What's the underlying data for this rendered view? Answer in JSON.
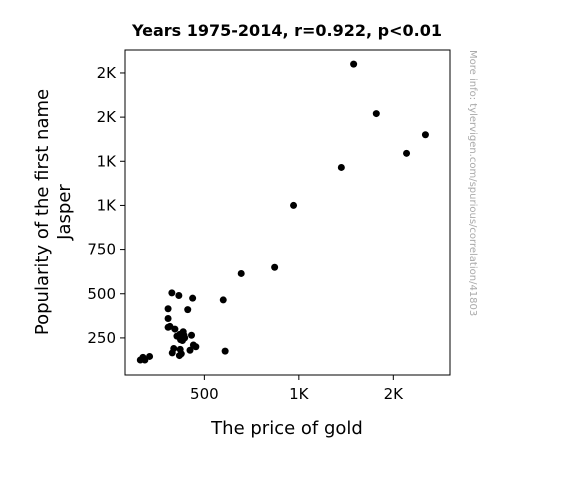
{
  "chart_data": {
    "type": "scatter",
    "title": "Years 1975-2014, r=0.922, p<0.01",
    "xlabel": "The price of gold",
    "ylabel_lines": [
      "Popularity of the first name",
      "Jasper"
    ],
    "watermark": "More info: tylervigen.com/spurious/correlation/41803",
    "xlim": [
      80,
      1800
    ],
    "ylim": [
      40,
      1880
    ],
    "x_ticks": [
      {
        "value": 500,
        "label": "500"
      },
      {
        "value": 1000,
        "label": "1K"
      },
      {
        "value": 1500,
        "label": "2K"
      }
    ],
    "y_ticks": [
      {
        "value": 250,
        "label": "250"
      },
      {
        "value": 500,
        "label": "500"
      },
      {
        "value": 750,
        "label": "750"
      },
      {
        "value": 1000,
        "label": "1K"
      },
      {
        "value": 1250,
        "label": "1K"
      },
      {
        "value": 1500,
        "label": "2K"
      },
      {
        "value": 1750,
        "label": "2K"
      }
    ],
    "marker_color": "#000000",
    "grid": false,
    "points": [
      {
        "x": 161,
        "y": 125
      },
      {
        "x": 175,
        "y": 140
      },
      {
        "x": 185,
        "y": 125
      },
      {
        "x": 210,
        "y": 145
      },
      {
        "x": 308,
        "y": 415
      },
      {
        "x": 308,
        "y": 360
      },
      {
        "x": 308,
        "y": 310
      },
      {
        "x": 318,
        "y": 315
      },
      {
        "x": 328,
        "y": 505
      },
      {
        "x": 330,
        "y": 165
      },
      {
        "x": 338,
        "y": 190
      },
      {
        "x": 344,
        "y": 300
      },
      {
        "x": 355,
        "y": 260
      },
      {
        "x": 365,
        "y": 490
      },
      {
        "x": 368,
        "y": 150
      },
      {
        "x": 370,
        "y": 270
      },
      {
        "x": 372,
        "y": 185
      },
      {
        "x": 374,
        "y": 240
      },
      {
        "x": 378,
        "y": 160
      },
      {
        "x": 380,
        "y": 255
      },
      {
        "x": 384,
        "y": 235
      },
      {
        "x": 388,
        "y": 285
      },
      {
        "x": 392,
        "y": 265
      },
      {
        "x": 396,
        "y": 250
      },
      {
        "x": 412,
        "y": 410
      },
      {
        "x": 424,
        "y": 180
      },
      {
        "x": 432,
        "y": 265
      },
      {
        "x": 438,
        "y": 475
      },
      {
        "x": 442,
        "y": 210
      },
      {
        "x": 455,
        "y": 200
      },
      {
        "x": 600,
        "y": 465
      },
      {
        "x": 610,
        "y": 175
      },
      {
        "x": 695,
        "y": 615
      },
      {
        "x": 872,
        "y": 650
      },
      {
        "x": 972,
        "y": 1000
      },
      {
        "x": 1225,
        "y": 1215
      },
      {
        "x": 1290,
        "y": 1800
      },
      {
        "x": 1410,
        "y": 1520
      },
      {
        "x": 1570,
        "y": 1295
      },
      {
        "x": 1670,
        "y": 1400
      }
    ]
  }
}
